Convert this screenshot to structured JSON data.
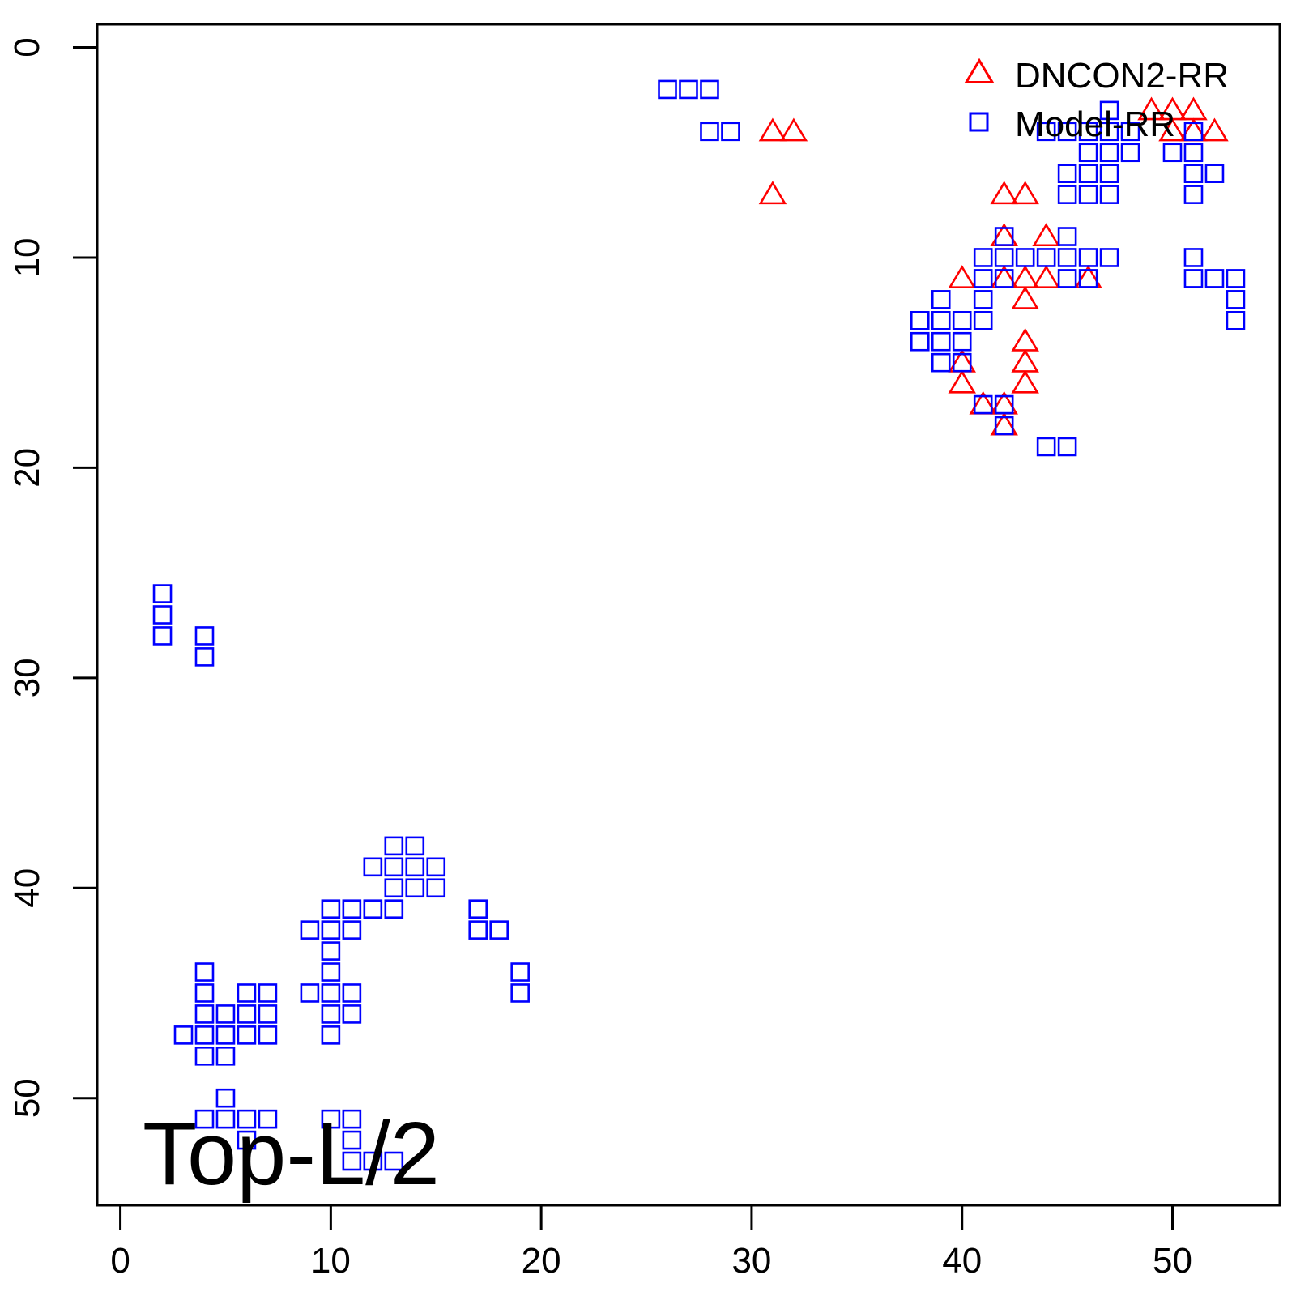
{
  "chart_data": {
    "type": "scatter",
    "title": "",
    "xlabel": "",
    "ylabel": "",
    "xlim": [
      -1.1,
      55.1
    ],
    "ylim": [
      55.1,
      -1.1
    ],
    "y_reversed": true,
    "grid": false,
    "x_ticks": [
      0,
      10,
      20,
      30,
      40,
      50
    ],
    "y_ticks": [
      0,
      10,
      20,
      30,
      40,
      50
    ],
    "legend": {
      "placement": "top-right"
    },
    "annotation": "Top-L/2",
    "series": [
      {
        "name": "DNCON2-RR",
        "marker": "triangle",
        "color": "#ff0000",
        "points": [
          [
            31,
            4
          ],
          [
            32,
            4
          ],
          [
            31,
            7
          ],
          [
            42,
            7
          ],
          [
            43,
            7
          ],
          [
            42,
            9
          ],
          [
            44,
            9
          ],
          [
            40,
            11
          ],
          [
            42,
            11
          ],
          [
            43,
            11
          ],
          [
            44,
            11
          ],
          [
            46,
            11
          ],
          [
            43,
            12
          ],
          [
            43,
            14
          ],
          [
            40,
            15
          ],
          [
            43,
            15
          ],
          [
            40,
            16
          ],
          [
            43,
            16
          ],
          [
            41,
            17
          ],
          [
            42,
            17
          ],
          [
            42,
            18
          ],
          [
            49,
            3
          ],
          [
            50,
            3
          ],
          [
            51,
            3
          ],
          [
            50,
            4
          ],
          [
            51,
            4
          ],
          [
            52,
            4
          ]
        ]
      },
      {
        "name": "Model-RR",
        "marker": "square",
        "color": "#0000ff",
        "points": [
          [
            26,
            2
          ],
          [
            27,
            2
          ],
          [
            28,
            2
          ],
          [
            28,
            4
          ],
          [
            29,
            4
          ],
          [
            47,
            3
          ],
          [
            44,
            4
          ],
          [
            45,
            4
          ],
          [
            46,
            4
          ],
          [
            47,
            4
          ],
          [
            48,
            4
          ],
          [
            51,
            4
          ],
          [
            46,
            5
          ],
          [
            47,
            5
          ],
          [
            48,
            5
          ],
          [
            50,
            5
          ],
          [
            51,
            5
          ],
          [
            45,
            6
          ],
          [
            46,
            6
          ],
          [
            47,
            6
          ],
          [
            51,
            6
          ],
          [
            52,
            6
          ],
          [
            45,
            7
          ],
          [
            46,
            7
          ],
          [
            47,
            7
          ],
          [
            51,
            7
          ],
          [
            42,
            9
          ],
          [
            45,
            9
          ],
          [
            41,
            10
          ],
          [
            42,
            10
          ],
          [
            43,
            10
          ],
          [
            44,
            10
          ],
          [
            45,
            10
          ],
          [
            46,
            10
          ],
          [
            47,
            10
          ],
          [
            51,
            10
          ],
          [
            41,
            11
          ],
          [
            42,
            11
          ],
          [
            45,
            11
          ],
          [
            46,
            11
          ],
          [
            51,
            11
          ],
          [
            52,
            11
          ],
          [
            53,
            11
          ],
          [
            39,
            12
          ],
          [
            41,
            12
          ],
          [
            53,
            12
          ],
          [
            38,
            13
          ],
          [
            39,
            13
          ],
          [
            40,
            13
          ],
          [
            41,
            13
          ],
          [
            53,
            13
          ],
          [
            38,
            14
          ],
          [
            39,
            14
          ],
          [
            40,
            14
          ],
          [
            39,
            15
          ],
          [
            40,
            15
          ],
          [
            41,
            17
          ],
          [
            42,
            17
          ],
          [
            42,
            18
          ],
          [
            44,
            19
          ],
          [
            45,
            19
          ],
          [
            2,
            26
          ],
          [
            2,
            27
          ],
          [
            2,
            28
          ],
          [
            4,
            28
          ],
          [
            4,
            29
          ],
          [
            13,
            38
          ],
          [
            14,
            38
          ],
          [
            12,
            39
          ],
          [
            13,
            39
          ],
          [
            14,
            39
          ],
          [
            15,
            39
          ],
          [
            13,
            40
          ],
          [
            14,
            40
          ],
          [
            15,
            40
          ],
          [
            10,
            41
          ],
          [
            11,
            41
          ],
          [
            12,
            41
          ],
          [
            13,
            41
          ],
          [
            17,
            41
          ],
          [
            9,
            42
          ],
          [
            10,
            42
          ],
          [
            11,
            42
          ],
          [
            17,
            42
          ],
          [
            18,
            42
          ],
          [
            10,
            43
          ],
          [
            4,
            44
          ],
          [
            10,
            44
          ],
          [
            19,
            44
          ],
          [
            4,
            45
          ],
          [
            6,
            45
          ],
          [
            7,
            45
          ],
          [
            9,
            45
          ],
          [
            10,
            45
          ],
          [
            11,
            45
          ],
          [
            19,
            45
          ],
          [
            4,
            46
          ],
          [
            5,
            46
          ],
          [
            6,
            46
          ],
          [
            7,
            46
          ],
          [
            10,
            46
          ],
          [
            11,
            46
          ],
          [
            3,
            47
          ],
          [
            4,
            47
          ],
          [
            5,
            47
          ],
          [
            6,
            47
          ],
          [
            7,
            47
          ],
          [
            10,
            47
          ],
          [
            4,
            48
          ],
          [
            5,
            48
          ],
          [
            5,
            50
          ],
          [
            4,
            51
          ],
          [
            5,
            51
          ],
          [
            6,
            51
          ],
          [
            7,
            51
          ],
          [
            10,
            51
          ],
          [
            11,
            51
          ],
          [
            6,
            52
          ],
          [
            11,
            52
          ],
          [
            11,
            53
          ],
          [
            12,
            53
          ],
          [
            13,
            53
          ]
        ]
      }
    ]
  }
}
